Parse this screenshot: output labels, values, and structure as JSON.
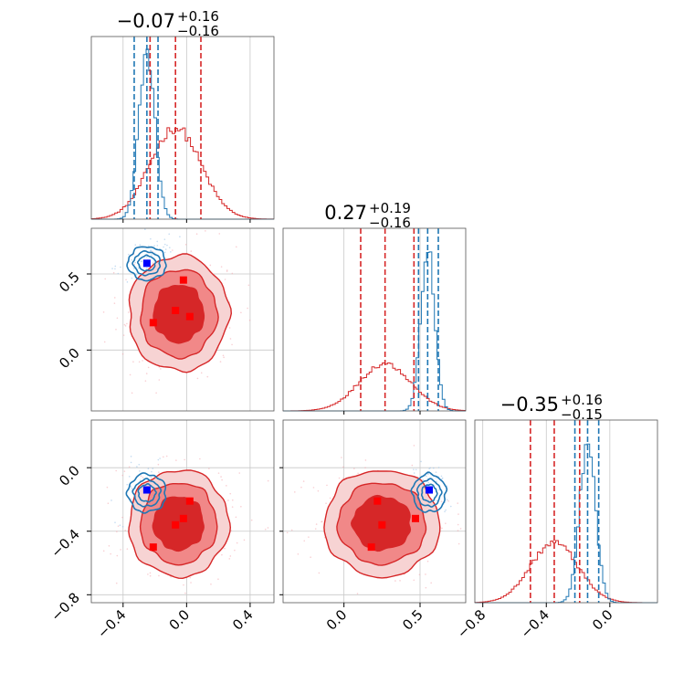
{
  "chart_data": {
    "type": "corner",
    "colors": {
      "posterior_a": "#d62728",
      "posterior_b": "#1f77b4",
      "fill_inner": "#d62728",
      "fill_outer": "#f08080",
      "marker_a": "#ff0000",
      "marker_b": "#0000ff",
      "grid": "#c8c8c8"
    },
    "params": [
      {
        "title_value": "−0.07",
        "title_plus": "+0.16",
        "title_minus": "−0.16",
        "range": [
          -0.6,
          0.55
        ],
        "ticks": [
          -0.4,
          0.0,
          0.4
        ],
        "tick_labels": [
          "−0.4",
          "0.0",
          "0.4"
        ],
        "red_quantiles": [
          -0.23,
          -0.07,
          0.09
        ],
        "blue_quantiles": [
          -0.33,
          -0.25,
          -0.18
        ],
        "red_hist": {
          "mean": -0.07,
          "sd": 0.16,
          "amp": 0.5
        },
        "blue_hist": {
          "mean": -0.25,
          "sd": 0.05,
          "amp": 0.92
        }
      },
      {
        "title_value": "0.27",
        "title_plus": "+0.19",
        "title_minus": "−0.16",
        "range": [
          -0.4,
          0.8
        ],
        "ticks": [
          0.0,
          0.5
        ],
        "tick_labels": [
          "0.0",
          "0.5"
        ],
        "red_quantiles": [
          0.11,
          0.27,
          0.46
        ],
        "blue_quantiles": [
          0.49,
          0.55,
          0.62
        ],
        "red_hist": {
          "mean": 0.27,
          "sd": 0.17,
          "amp": 0.26
        },
        "blue_hist": {
          "mean": 0.55,
          "sd": 0.045,
          "amp": 0.9
        }
      },
      {
        "title_value": "−0.35",
        "title_plus": "+0.16",
        "title_minus": "−0.15",
        "range": [
          -0.85,
          0.3
        ],
        "ticks": [
          -0.8,
          -0.4,
          0.0
        ],
        "tick_labels": [
          "−0.8",
          "−0.4",
          "0.0"
        ],
        "red_quantiles": [
          -0.5,
          -0.35,
          -0.19
        ],
        "blue_quantiles": [
          -0.22,
          -0.14,
          -0.07
        ],
        "red_hist": {
          "mean": -0.35,
          "sd": 0.15,
          "amp": 0.33
        },
        "blue_hist": {
          "mean": -0.14,
          "sd": 0.05,
          "amp": 0.88
        }
      }
    ],
    "y_axis_rows": [
      {
        "row": 1,
        "ticks": [
          0.0,
          0.5
        ],
        "tick_labels": [
          "0.0",
          "0.5"
        ]
      },
      {
        "row": 2,
        "ticks": [
          -0.8,
          -0.4,
          0.0
        ],
        "tick_labels": [
          "−0.8",
          "−0.4",
          "0.0"
        ]
      }
    ],
    "pairs": [
      {
        "row": 1,
        "col": 0,
        "red_center": [
          -0.05,
          0.24
        ],
        "red_sigma": [
          0.15,
          0.18
        ],
        "blue_center": [
          -0.25,
          0.57
        ],
        "blue_sigma": [
          0.06,
          0.055
        ],
        "red_markers": [
          [
            -0.02,
            0.46
          ],
          [
            -0.21,
            0.18
          ],
          [
            -0.07,
            0.26
          ],
          [
            0.02,
            0.22
          ]
        ],
        "blue_marker": [
          -0.25,
          0.57
        ]
      },
      {
        "row": 2,
        "col": 0,
        "red_center": [
          -0.05,
          -0.35
        ],
        "red_sigma": [
          0.15,
          0.16
        ],
        "blue_center": [
          -0.25,
          -0.16
        ],
        "blue_sigma": [
          0.06,
          0.06
        ],
        "red_markers": [
          [
            0.02,
            -0.21
          ],
          [
            -0.02,
            -0.32
          ],
          [
            -0.07,
            -0.36
          ],
          [
            -0.21,
            -0.5
          ]
        ],
        "blue_marker": [
          -0.25,
          -0.14
        ]
      },
      {
        "row": 2,
        "col": 1,
        "red_center": [
          0.25,
          -0.35
        ],
        "red_sigma": [
          0.18,
          0.16
        ],
        "blue_center": [
          0.56,
          -0.16
        ],
        "blue_sigma": [
          0.055,
          0.06
        ],
        "red_markers": [
          [
            0.22,
            -0.21
          ],
          [
            0.25,
            -0.36
          ],
          [
            0.47,
            -0.32
          ],
          [
            0.18,
            -0.5
          ]
        ],
        "blue_marker": [
          0.56,
          -0.14
        ]
      }
    ]
  }
}
